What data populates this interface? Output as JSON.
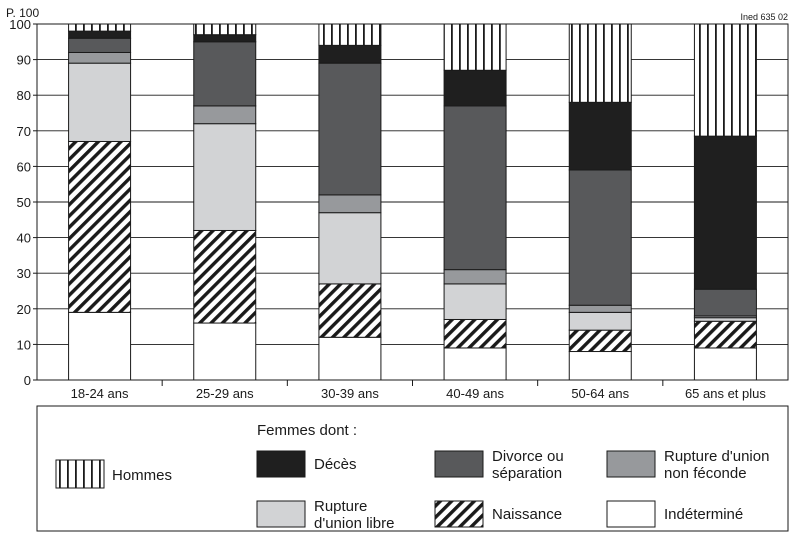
{
  "chart_data": {
    "type": "bar",
    "stacked": true,
    "unit_label": "P. 100",
    "source_label": "Ined 635 02",
    "title": "",
    "xlabel": "",
    "ylabel": "",
    "ylim": [
      0,
      100
    ],
    "yticks": [
      0,
      10,
      20,
      30,
      40,
      50,
      60,
      70,
      80,
      90,
      100
    ],
    "grid": true,
    "categories": [
      "18-24 ans",
      "25-29 ans",
      "30-39 ans",
      "40-49 ans",
      "50-64 ans",
      "65 ans et plus"
    ],
    "series": [
      {
        "name": "Indéterminé",
        "key": "indetermine",
        "values": [
          19,
          16,
          12,
          9,
          8,
          9
        ]
      },
      {
        "name": "Naissance",
        "key": "naissance",
        "values": [
          48,
          26,
          15,
          8,
          6,
          7.5
        ]
      },
      {
        "name": "Rupture d'union libre",
        "key": "rupture_libre",
        "values": [
          22,
          30,
          20,
          10,
          5,
          1
        ]
      },
      {
        "name": "Rupture d'union non féconde",
        "key": "rupture_non_feconde",
        "values": [
          3,
          5,
          5,
          4,
          2,
          0.5
        ]
      },
      {
        "name": "Divorce ou séparation",
        "key": "divorce",
        "values": [
          4,
          18,
          37,
          46,
          38,
          7.5
        ]
      },
      {
        "name": "Décès",
        "key": "deces",
        "values": [
          2,
          2,
          5,
          10,
          19,
          43
        ]
      },
      {
        "name": "Hommes",
        "key": "hommes",
        "values": [
          2,
          3,
          6,
          13,
          22,
          31.5
        ]
      }
    ],
    "legend": {
      "placement": "bottom",
      "subtitle": "Femmes dont :",
      "hommes_label": "Hommes",
      "entries": [
        {
          "key": "deces",
          "lines": [
            "Décès"
          ]
        },
        {
          "key": "divorce",
          "lines": [
            "Divorce ou",
            "séparation"
          ]
        },
        {
          "key": "rupture_non_feconde",
          "lines": [
            "Rupture d'union",
            "non féconde"
          ]
        },
        {
          "key": "rupture_libre",
          "lines": [
            "Rupture",
            "d'union libre"
          ]
        },
        {
          "key": "naissance",
          "lines": [
            "Naissance"
          ]
        },
        {
          "key": "indetermine",
          "lines": [
            "Indéterminé"
          ]
        }
      ]
    },
    "colors": {
      "indetermine": "#ffffff",
      "rupture_libre": "#d2d3d5",
      "rupture_non_feconde": "#97999c",
      "divorce": "#58595b",
      "deces": "#1f1f1f",
      "hommes": "#ffffff",
      "stroke": "#1a1a1a"
    }
  }
}
